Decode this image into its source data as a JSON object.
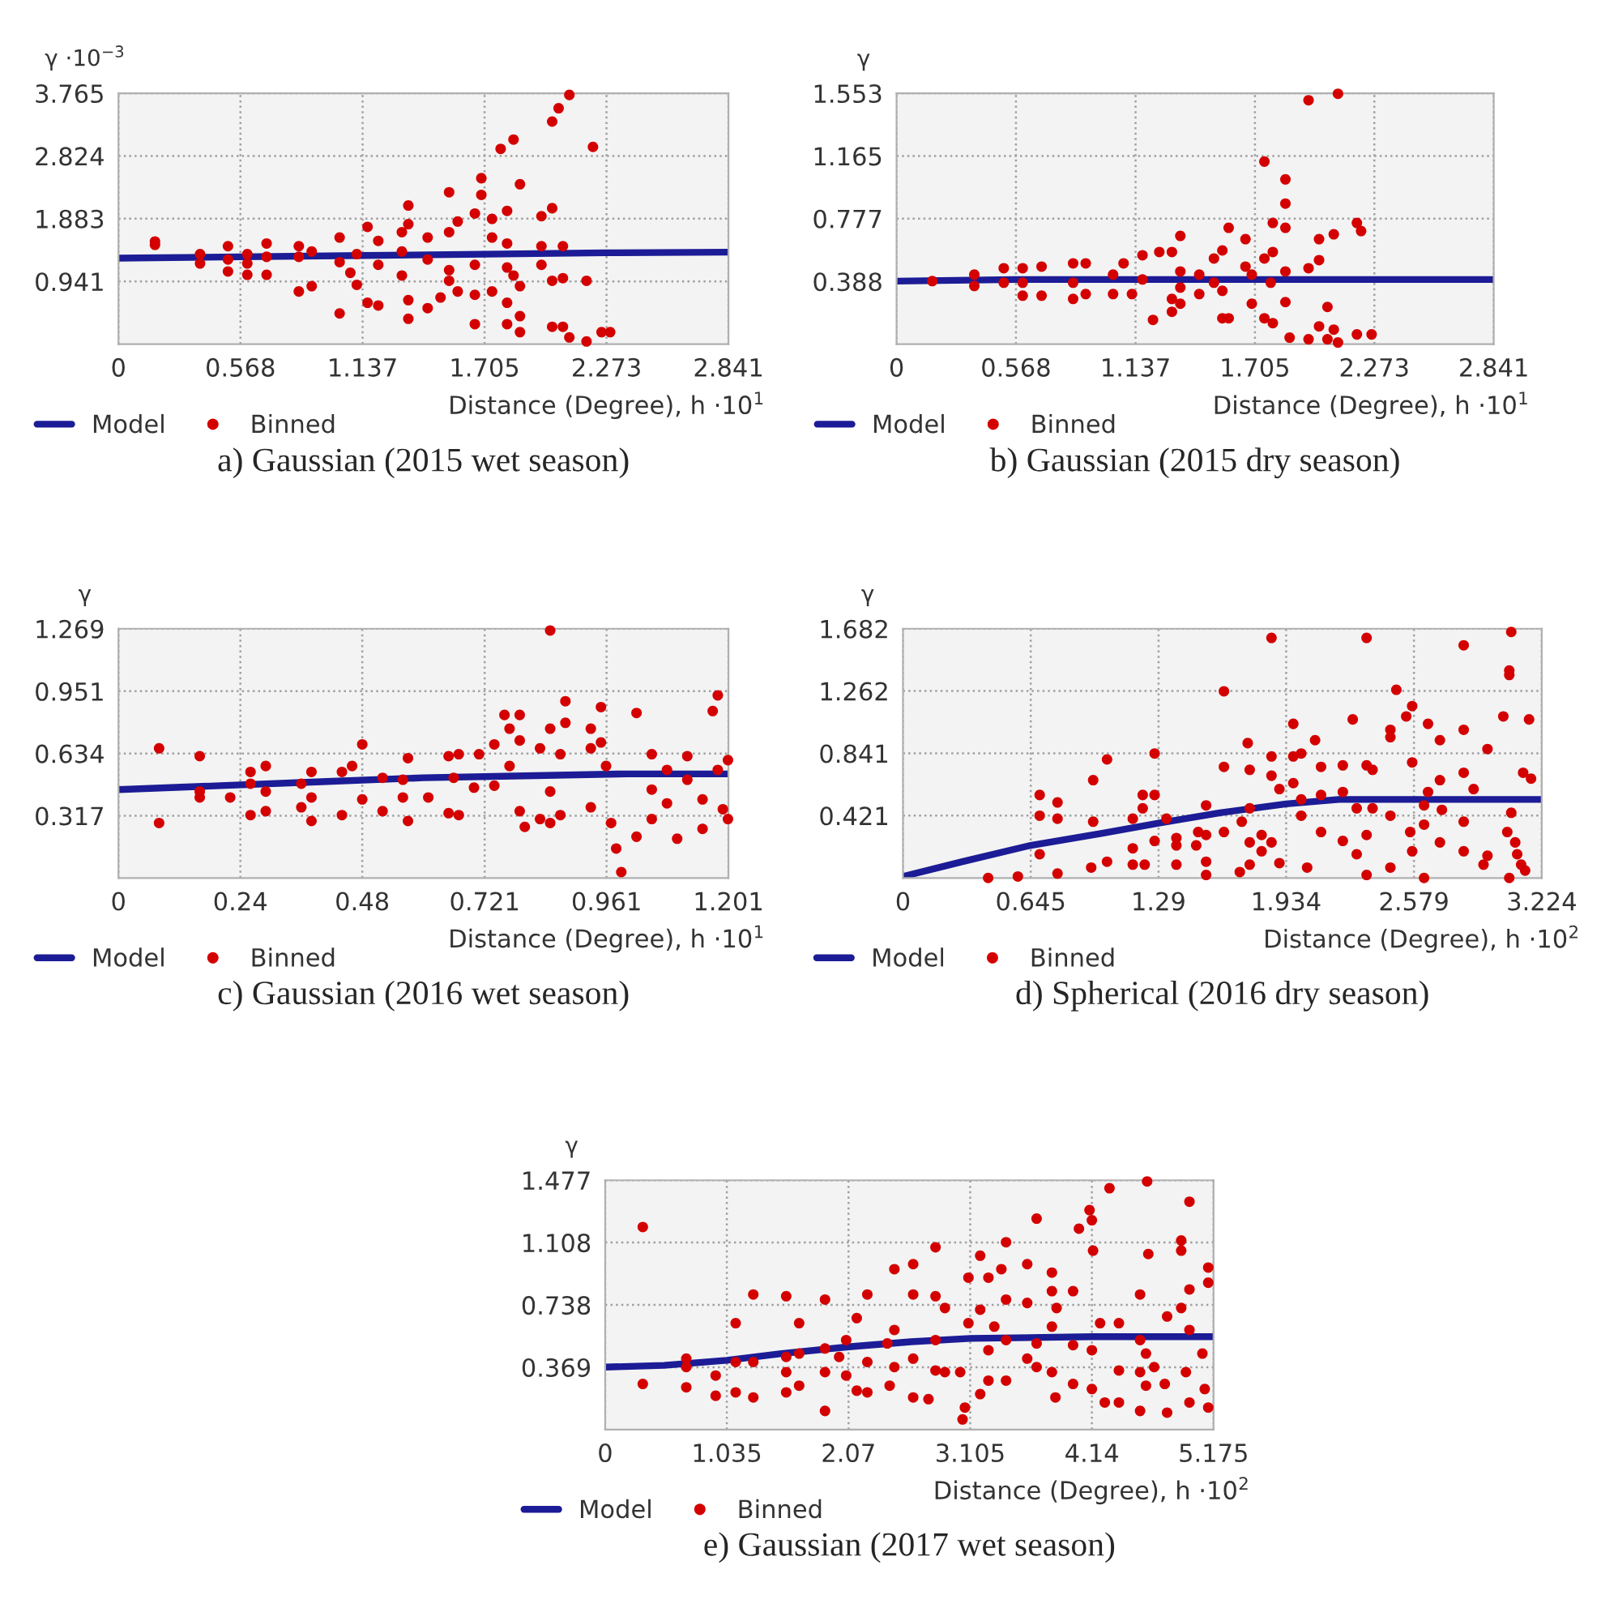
{
  "chart_data": [
    {
      "type": "scatter",
      "title": "a) Gaussian (2015 wet season)",
      "xlabel": "Distance (Degree), h ·10$^{1}$",
      "ylabel": "γ ·10$^{−3}$",
      "xlim": [
        0,
        2.841
      ],
      "ylim": [
        0,
        3.765
      ],
      "xticks": [
        0,
        0.568,
        1.137,
        1.705,
        2.273,
        2.841
      ],
      "yticks": [
        0.941,
        1.883,
        2.824,
        3.765
      ],
      "grid": true,
      "legend": "bottom left",
      "marker": "circle",
      "series": [
        {
          "name": "Model",
          "type": "line",
          "color": "#1c1c96",
          "x": [
            0,
            0.568,
            1.137,
            1.705,
            2.273,
            2.841
          ],
          "marker": "none",
          "values": [
            1.29,
            1.31,
            1.33,
            1.35,
            1.37,
            1.38
          ]
        },
        {
          "name": "Binned",
          "color": "#d40000",
          "x": [
            0.17,
            0.17,
            0.38,
            0.38,
            0.51,
            0.51,
            0.51,
            0.6,
            0.6,
            0.6,
            0.69,
            0.69,
            0.69,
            0.84,
            0.84,
            0.84,
            0.9,
            0.9,
            1.03,
            1.03,
            1.03,
            1.08,
            1.11,
            1.11,
            1.16,
            1.16,
            1.21,
            1.21,
            1.21,
            1.32,
            1.32,
            1.32,
            1.35,
            1.35,
            1.35,
            1.35,
            1.44,
            1.44,
            1.44,
            1.5,
            1.54,
            1.54,
            1.54,
            1.54,
            1.58,
            1.58,
            1.66,
            1.66,
            1.66,
            1.66,
            1.69,
            1.69,
            1.74,
            1.74,
            1.74,
            1.78,
            1.81,
            1.81,
            1.81,
            1.81,
            1.81,
            1.84,
            1.84,
            1.87,
            1.87,
            1.87,
            1.87,
            1.97,
            1.97,
            1.97,
            2.02,
            2.02,
            2.02,
            2.02,
            2.05,
            2.07,
            2.07,
            2.07,
            2.1,
            2.1,
            2.18,
            2.18,
            2.21,
            2.25,
            2.29
          ],
          "values": [
            1.54,
            1.49,
            1.35,
            1.21,
            1.47,
            1.27,
            1.09,
            1.35,
            1.21,
            1.04,
            1.51,
            1.31,
            1.04,
            1.47,
            1.31,
            0.79,
            1.39,
            0.87,
            1.6,
            1.23,
            0.46,
            1.07,
            1.35,
            0.89,
            1.76,
            0.62,
            1.55,
            0.58,
            1.19,
            1.68,
            1.03,
            1.39,
            2.08,
            1.8,
            0.66,
            0.38,
            1.6,
            1.27,
            0.54,
            0.7,
            2.28,
            1.68,
            1.11,
            0.95,
            1.84,
            0.79,
            1.96,
            1.19,
            0.74,
            0.3,
            2.49,
            2.24,
            1.88,
            1.6,
            0.79,
            2.93,
            2.0,
            1.51,
            1.15,
            0.62,
            0.3,
            3.07,
            1.03,
            2.4,
            0.87,
            0.42,
            0.18,
            1.92,
            1.47,
            1.19,
            3.34,
            2.04,
            0.95,
            0.26,
            3.54,
            1.47,
            0.99,
            0.26,
            3.74,
            0.1,
            0.95,
            0.04,
            2.96,
            0.18,
            0.18
          ]
        }
      ]
    },
    {
      "type": "scatter",
      "title": "b) Gaussian (2015 dry season)",
      "xlabel": "Distance (Degree), h ·10$^{1}$",
      "ylabel": "γ",
      "xlim": [
        0,
        2.841
      ],
      "ylim": [
        0,
        1.553
      ],
      "xticks": [
        0,
        0.568,
        1.137,
        1.705,
        2.273,
        2.841
      ],
      "yticks": [
        0.388,
        0.777,
        1.165,
        1.553
      ],
      "grid": true,
      "legend": "bottom left",
      "marker": "circle",
      "series": [
        {
          "name": "Model",
          "type": "line",
          "color": "#1c1c96",
          "x": [
            0,
            0.568,
            1.137,
            1.705,
            2.273,
            2.841
          ],
          "marker": "none",
          "values": [
            0.39,
            0.4,
            0.4,
            0.4,
            0.4,
            0.4
          ]
        },
        {
          "name": "Binned",
          "color": "#d40000",
          "x": [
            0.17,
            0.37,
            0.37,
            0.51,
            0.51,
            0.6,
            0.6,
            0.6,
            0.69,
            0.69,
            0.84,
            0.84,
            0.84,
            0.9,
            0.9,
            1.03,
            1.03,
            1.08,
            1.12,
            1.17,
            1.17,
            1.22,
            1.25,
            1.31,
            1.31,
            1.31,
            1.35,
            1.35,
            1.35,
            1.35,
            1.44,
            1.44,
            1.51,
            1.51,
            1.55,
            1.55,
            1.55,
            1.58,
            1.58,
            1.66,
            1.66,
            1.69,
            1.69,
            1.75,
            1.75,
            1.75,
            1.78,
            1.79,
            1.79,
            1.79,
            1.85,
            1.85,
            1.85,
            1.85,
            1.85,
            1.87,
            1.96,
            1.96,
            1.96,
            2.01,
            2.01,
            2.01,
            2.05,
            2.05,
            2.08,
            2.08,
            2.1,
            2.1,
            2.19,
            2.21,
            2.19,
            2.26
          ],
          "values": [
            0.39,
            0.43,
            0.36,
            0.47,
            0.38,
            0.47,
            0.3,
            0.38,
            0.48,
            0.3,
            0.5,
            0.28,
            0.38,
            0.5,
            0.31,
            0.43,
            0.31,
            0.5,
            0.31,
            0.55,
            0.4,
            0.15,
            0.57,
            0.57,
            0.28,
            0.2,
            0.67,
            0.45,
            0.35,
            0.25,
            0.43,
            0.31,
            0.53,
            0.38,
            0.58,
            0.16,
            0.33,
            0.72,
            0.16,
            0.65,
            0.48,
            0.25,
            0.43,
            1.13,
            0.53,
            0.16,
            0.38,
            0.75,
            0.57,
            0.13,
            1.02,
            0.87,
            0.72,
            0.45,
            0.26,
            0.04,
            1.51,
            0.47,
            0.03,
            0.65,
            0.52,
            0.11,
            0.23,
            0.03,
            0.68,
            0.09,
            1.55,
            0.01,
            0.75,
            0.7,
            0.06,
            0.06
          ]
        }
      ]
    },
    {
      "type": "scatter",
      "title": "c) Gaussian (2016 wet season)",
      "xlabel": "Distance (Degree), h ·10$^{1}$",
      "ylabel": "γ",
      "xlim": [
        0,
        1.201
      ],
      "ylim": [
        0,
        1.269
      ],
      "xticks": [
        0,
        0.24,
        0.48,
        0.721,
        0.961,
        1.201
      ],
      "yticks": [
        0.317,
        0.634,
        0.951,
        1.269
      ],
      "grid": true,
      "legend": "bottom left",
      "marker": "circle",
      "series": [
        {
          "name": "Model",
          "type": "line",
          "color": "#1c1c96",
          "x": [
            0,
            0.2,
            0.4,
            0.6,
            0.8,
            1.0,
            1.201
          ],
          "marker": "none",
          "values": [
            0.45,
            0.47,
            0.49,
            0.51,
            0.52,
            0.53,
            0.53
          ]
        },
        {
          "name": "Binned",
          "color": "#d40000",
          "x": [
            0.08,
            0.08,
            0.16,
            0.16,
            0.16,
            0.22,
            0.26,
            0.26,
            0.26,
            0.29,
            0.29,
            0.29,
            0.36,
            0.36,
            0.38,
            0.38,
            0.38,
            0.44,
            0.44,
            0.46,
            0.48,
            0.48,
            0.52,
            0.52,
            0.56,
            0.56,
            0.57,
            0.57,
            0.61,
            0.65,
            0.65,
            0.66,
            0.67,
            0.67,
            0.7,
            0.71,
            0.74,
            0.74,
            0.76,
            0.77,
            0.77,
            0.79,
            0.79,
            0.79,
            0.8,
            0.83,
            0.83,
            0.85,
            0.85,
            0.85,
            0.85,
            0.88,
            0.88,
            0.87,
            0.87,
            0.93,
            0.93,
            0.93,
            0.95,
            0.95,
            0.96,
            0.97,
            0.98,
            0.99,
            1.02,
            1.02,
            1.05,
            1.05,
            1.05,
            1.08,
            1.08,
            1.1,
            1.12,
            1.12,
            1.15,
            1.15,
            1.17,
            1.18,
            1.18,
            1.19,
            1.2,
            1.2
          ],
          "values": [
            0.66,
            0.28,
            0.62,
            0.44,
            0.41,
            0.41,
            0.54,
            0.32,
            0.48,
            0.57,
            0.34,
            0.44,
            0.48,
            0.36,
            0.54,
            0.29,
            0.41,
            0.54,
            0.32,
            0.57,
            0.68,
            0.4,
            0.51,
            0.34,
            0.5,
            0.41,
            0.61,
            0.29,
            0.41,
            0.62,
            0.33,
            0.51,
            0.63,
            0.32,
            0.46,
            0.63,
            0.68,
            0.47,
            0.83,
            0.76,
            0.57,
            0.83,
            0.7,
            0.34,
            0.26,
            0.66,
            0.3,
            1.26,
            0.76,
            0.44,
            0.28,
            0.9,
            0.79,
            0.63,
            0.32,
            0.76,
            0.66,
            0.36,
            0.87,
            0.69,
            0.57,
            0.28,
            0.15,
            0.03,
            0.84,
            0.21,
            0.63,
            0.45,
            0.3,
            0.55,
            0.38,
            0.2,
            0.5,
            0.62,
            0.4,
            0.25,
            0.85,
            0.93,
            0.55,
            0.35,
            0.6,
            0.3
          ]
        }
      ]
    },
    {
      "type": "scatter",
      "title": "d) Spherical (2016 dry season)",
      "xlabel": "Distance (Degree), h ·10$^{2}$",
      "ylabel": "γ",
      "xlim": [
        0,
        3.224
      ],
      "ylim": [
        0,
        1.682
      ],
      "xticks": [
        0,
        0.645,
        1.29,
        1.934,
        2.579,
        3.224
      ],
      "yticks": [
        0.421,
        0.841,
        1.262,
        1.682
      ],
      "grid": true,
      "legend": "bottom left",
      "marker": "circle",
      "series": [
        {
          "name": "Model",
          "type": "line",
          "color": "#1c1c96",
          "x": [
            0,
            0.3,
            0.645,
            1.0,
            1.29,
            1.6,
            1.934,
            2.2,
            2.6,
            3.224
          ],
          "marker": "none",
          "values": [
            0.01,
            0.11,
            0.22,
            0.3,
            0.37,
            0.44,
            0.5,
            0.53,
            0.53,
            0.53
          ]
        },
        {
          "name": "Binned",
          "color": "#d40000",
          "x": [
            0.43,
            0.58,
            0.69,
            0.69,
            0.69,
            0.78,
            0.78,
            0.78,
            0.95,
            0.96,
            0.96,
            1.03,
            1.03,
            1.16,
            1.16,
            1.16,
            1.21,
            1.21,
            1.22,
            1.27,
            1.27,
            1.27,
            1.33,
            1.38,
            1.38,
            1.38,
            1.48,
            1.49,
            1.53,
            1.53,
            1.53,
            1.53,
            1.62,
            1.62,
            1.62,
            1.7,
            1.71,
            1.74,
            1.75,
            1.75,
            1.75,
            1.75,
            1.81,
            1.81,
            1.86,
            1.86,
            1.86,
            1.86,
            1.9,
            1.9,
            1.97,
            1.97,
            1.97,
            2.01,
            2.01,
            2.01,
            2.04,
            2.08,
            2.11,
            2.11,
            2.11,
            2.22,
            2.22,
            2.22,
            2.27,
            2.29,
            2.29,
            2.34,
            2.34,
            2.34,
            2.34,
            2.37,
            2.37,
            2.46,
            2.46,
            2.46,
            2.46,
            2.49,
            2.54,
            2.57,
            2.57,
            2.56,
            2.57,
            2.63,
            2.63,
            2.63,
            2.65,
            2.65,
            2.71,
            2.71,
            2.71,
            2.72,
            2.83,
            2.83,
            2.83,
            2.83,
            2.83,
            2.88,
            2.93,
            2.95,
            2.95,
            3.03,
            3.07,
            3.06,
            3.06,
            3.07,
            3.05,
            3.09,
            3.1,
            3.12,
            3.06,
            3.13,
            3.16,
            3.17,
            3.14
          ],
          "values": [
            0.0,
            0.01,
            0.56,
            0.42,
            0.16,
            0.51,
            0.4,
            0.03,
            0.07,
            0.66,
            0.38,
            0.8,
            0.11,
            0.4,
            0.2,
            0.09,
            0.56,
            0.47,
            0.09,
            0.84,
            0.56,
            0.25,
            0.4,
            0.27,
            0.09,
            0.22,
            0.22,
            0.31,
            0.49,
            0.11,
            0.02,
            0.29,
            1.26,
            0.75,
            0.31,
            0.04,
            0.38,
            0.91,
            0.73,
            0.47,
            0.24,
            0.09,
            0.29,
            0.18,
            1.62,
            0.82,
            0.69,
            0.24,
            0.6,
            0.1,
            1.04,
            0.82,
            0.64,
            0.84,
            0.53,
            0.42,
            0.07,
            0.93,
            0.75,
            0.31,
            0.56,
            0.76,
            0.25,
            0.58,
            1.07,
            0.16,
            0.47,
            1.62,
            0.76,
            0.29,
            0.02,
            0.73,
            0.47,
            1.0,
            0.95,
            0.42,
            0.07,
            1.27,
            1.09,
            1.16,
            0.78,
            0.31,
            0.18,
            0.0,
            0.49,
            0.36,
            1.04,
            0.58,
            0.93,
            0.66,
            0.24,
            0.46,
            1.57,
            1.0,
            0.71,
            0.18,
            0.38,
            0.6,
            0.09,
            0.87,
            0.15,
            1.09,
            1.66,
            1.4,
            1.37,
            0.44,
            0.31,
            0.24,
            0.16,
            0.09,
            0.0,
            0.71,
            1.07,
            0.67,
            0.05
          ]
        }
      ]
    },
    {
      "type": "scatter",
      "title": "e) Gaussian (2017 wet season)",
      "xlabel": "Distance (Degree), h ·10$^{2}$",
      "ylabel": "γ",
      "xlim": [
        0,
        5.175
      ],
      "ylim": [
        0,
        1.477
      ],
      "xticks": [
        0,
        1.035,
        2.07,
        3.105,
        4.14,
        5.175
      ],
      "yticks": [
        0.369,
        0.738,
        1.108,
        1.477
      ],
      "grid": true,
      "legend": "bottom left",
      "marker": "circle",
      "series": [
        {
          "name": "Model",
          "type": "line",
          "color": "#1c1c96",
          "x": [
            0,
            0.5,
            1.035,
            1.5,
            2.07,
            2.6,
            3.105,
            4.14,
            5.175
          ],
          "marker": "none",
          "values": [
            0.37,
            0.38,
            0.41,
            0.45,
            0.49,
            0.52,
            0.54,
            0.55,
            0.55
          ]
        },
        {
          "name": "Binned",
          "color": "#d40000",
          "x": [
            0.32,
            0.32,
            0.69,
            0.69,
            0.69,
            0.94,
            0.94,
            1.11,
            1.11,
            1.11,
            1.26,
            1.26,
            1.26,
            1.54,
            1.54,
            1.54,
            1.54,
            1.65,
            1.65,
            1.65,
            1.87,
            1.87,
            1.87,
            1.87,
            1.99,
            2.05,
            2.05,
            2.14,
            2.23,
            2.23,
            2.23,
            2.14,
            2.4,
            2.42,
            2.46,
            2.46,
            2.46,
            2.62,
            2.62,
            2.62,
            2.62,
            2.75,
            2.81,
            2.81,
            2.81,
            2.81,
            2.89,
            2.89,
            3.02,
            3.04,
            3.06,
            3.09,
            3.09,
            3.19,
            3.19,
            3.19,
            3.26,
            3.26,
            3.26,
            3.31,
            3.37,
            3.41,
            3.41,
            3.41,
            3.41,
            3.59,
            3.59,
            3.59,
            3.67,
            3.67,
            3.67,
            3.8,
            3.8,
            3.8,
            3.8,
            3.83,
            3.84,
            3.98,
            3.98,
            3.98,
            4.03,
            4.12,
            4.14,
            4.15,
            4.14,
            4.14,
            4.21,
            4.25,
            4.29,
            4.37,
            4.37,
            4.37,
            4.55,
            4.55,
            4.55,
            4.55,
            4.61,
            4.62,
            4.6,
            4.6,
            4.67,
            4.76,
            4.78,
            4.78,
            4.9,
            4.9,
            4.9,
            4.97,
            4.97,
            4.97,
            4.94,
            4.97,
            5.08,
            5.1,
            5.13,
            5.13,
            5.13
          ],
          "values": [
            1.2,
            0.27,
            0.42,
            0.37,
            0.25,
            0.32,
            0.2,
            0.63,
            0.22,
            0.4,
            0.8,
            0.19,
            0.4,
            0.79,
            0.34,
            0.22,
            0.43,
            0.63,
            0.26,
            0.45,
            0.77,
            0.34,
            0.11,
            0.48,
            0.43,
            0.32,
            0.53,
            0.66,
            0.8,
            0.4,
            0.22,
            0.23,
            0.51,
            0.26,
            0.95,
            0.37,
            0.59,
            0.98,
            0.8,
            0.19,
            0.42,
            0.18,
            1.08,
            0.79,
            0.53,
            0.35,
            0.72,
            0.34,
            0.34,
            0.06,
            0.13,
            0.63,
            0.9,
            1.03,
            0.71,
            0.21,
            0.9,
            0.47,
            0.29,
            0.61,
            0.95,
            1.11,
            0.77,
            0.53,
            0.29,
            0.98,
            0.75,
            0.42,
            1.25,
            0.51,
            0.37,
            0.93,
            0.82,
            0.61,
            0.34,
            0.19,
            0.72,
            0.82,
            0.5,
            0.27,
            1.19,
            1.3,
            1.24,
            1.06,
            0.47,
            0.24,
            0.63,
            0.16,
            1.43,
            0.63,
            0.35,
            0.16,
            0.8,
            0.53,
            0.34,
            0.11,
            1.47,
            1.04,
            0.45,
            0.26,
            0.37,
            0.27,
            0.1,
            0.67,
            1.12,
            0.72,
            1.06,
            1.35,
            0.83,
            0.59,
            0.34,
            0.16,
            0.45,
            0.24,
            0.96,
            0.87,
            0.13
          ]
        }
      ]
    }
  ]
}
